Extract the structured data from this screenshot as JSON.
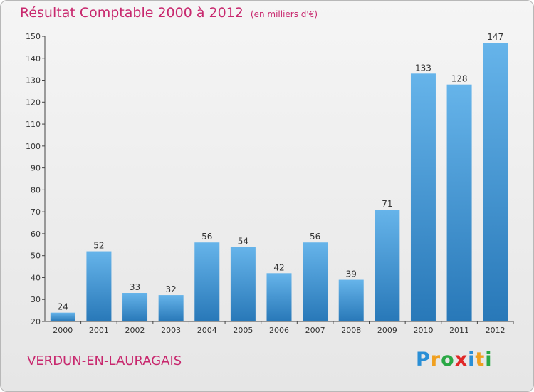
{
  "chart_data": {
    "type": "bar",
    "title": "Résultat Comptable 2000 à 2012",
    "subtitle": "(en milliers d'€)",
    "categories": [
      "2000",
      "2001",
      "2002",
      "2003",
      "2004",
      "2005",
      "2006",
      "2007",
      "2008",
      "2009",
      "2010",
      "2011",
      "2012"
    ],
    "values": [
      24,
      52,
      33,
      32,
      56,
      54,
      42,
      56,
      39,
      71,
      133,
      128,
      147
    ],
    "ylim": [
      20,
      150
    ],
    "yticks": [
      20,
      30,
      40,
      50,
      60,
      70,
      80,
      90,
      100,
      110,
      120,
      130,
      140,
      150
    ],
    "xlabel": "",
    "ylabel": "",
    "grid": false
  },
  "footer": {
    "commune": "VERDUN-EN-LAURAGAIS",
    "brand_letters": [
      {
        "char": "P",
        "color": "#2a8fd6"
      },
      {
        "char": "r",
        "color": "#f0a020"
      },
      {
        "char": "o",
        "color": "#2aa845"
      },
      {
        "char": "x",
        "color": "#e02828"
      },
      {
        "char": "i",
        "color": "#2a8fd6"
      },
      {
        "char": "t",
        "color": "#f0a020"
      },
      {
        "char": "i",
        "color": "#2aa845"
      }
    ]
  },
  "colors": {
    "bar_light": "#66b4ea",
    "bar_dark": "#2878b8",
    "title": "#c8286e"
  }
}
